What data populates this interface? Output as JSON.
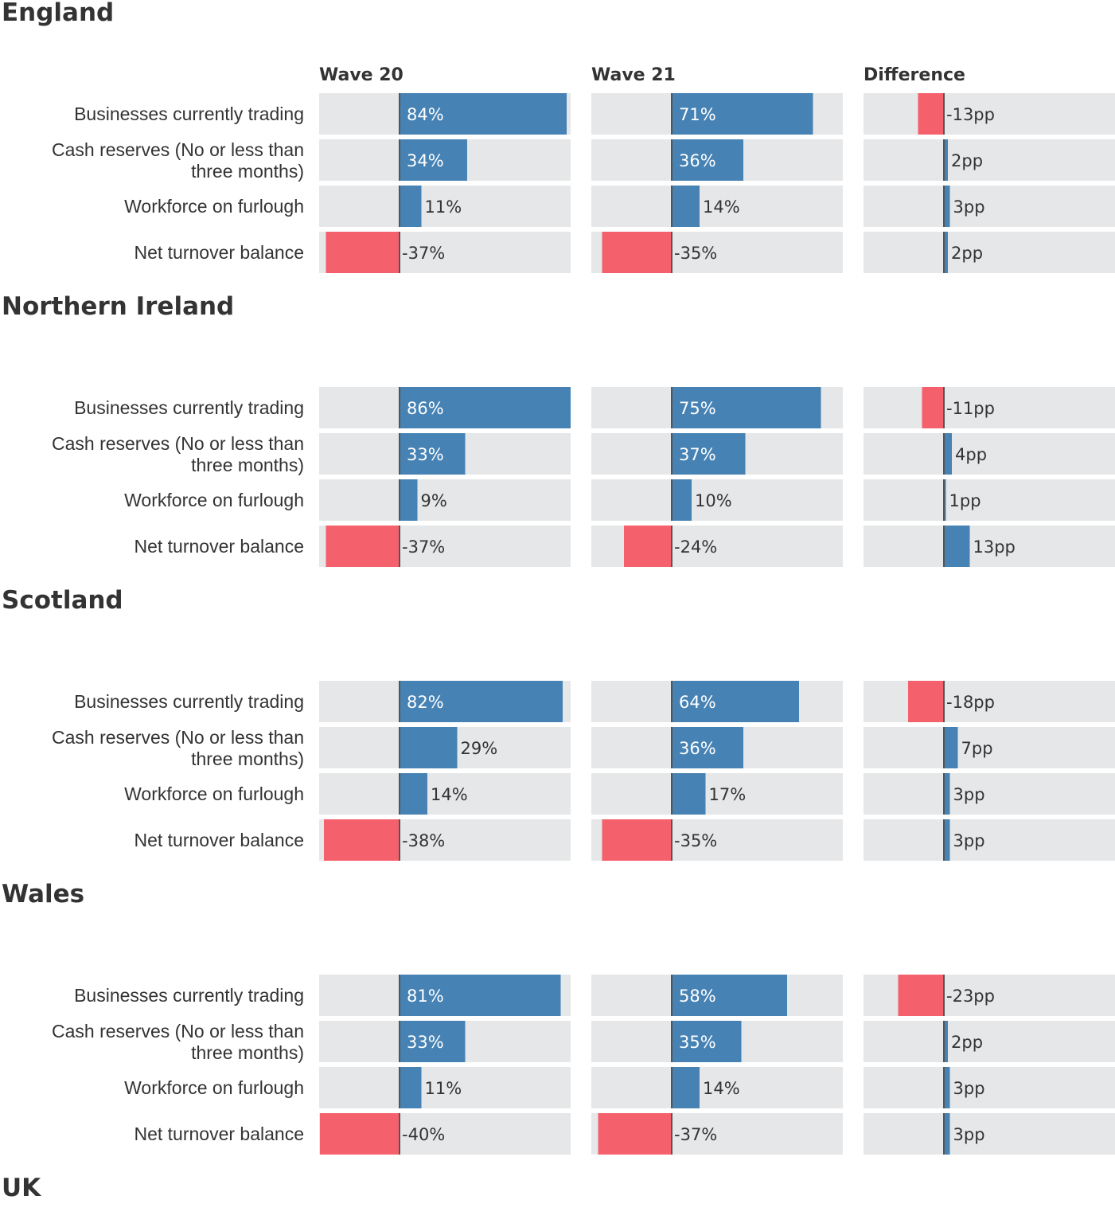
{
  "chart_data": {
    "type": "bar",
    "orientation": "horizontal",
    "columns": [
      "Wave 20",
      "Wave 21",
      "Difference"
    ],
    "categories": [
      "Businesses currently trading",
      "Cash reserves (No or less than three months)",
      "Workforce on furlough",
      "Net turnover balance"
    ],
    "category_lines": [
      [
        "Businesses currently trading"
      ],
      [
        "Cash reserves (No or less than",
        "three months)"
      ],
      [
        "Workforce on furlough"
      ],
      [
        "Net turnover balance"
      ]
    ],
    "wave_suffix": "%",
    "diff_suffix": "pp",
    "panels": [
      {
        "region": "England",
        "wave20": [
          84,
          34,
          11,
          -37
        ],
        "wave21": [
          71,
          36,
          14,
          -35
        ],
        "difference": [
          -13,
          2,
          3,
          2
        ]
      },
      {
        "region": "Northern Ireland",
        "wave20": [
          86,
          33,
          9,
          -37
        ],
        "wave21": [
          75,
          37,
          10,
          -24
        ],
        "difference": [
          -11,
          4,
          1,
          13
        ]
      },
      {
        "region": "Scotland",
        "wave20": [
          82,
          29,
          14,
          -38
        ],
        "wave21": [
          64,
          36,
          17,
          -35
        ],
        "difference": [
          -18,
          7,
          3,
          3
        ]
      },
      {
        "region": "Wales",
        "wave20": [
          81,
          33,
          11,
          -40
        ],
        "wave21": [
          58,
          35,
          14,
          -37
        ],
        "difference": [
          -23,
          2,
          3,
          3
        ]
      },
      {
        "region": "UK"
      }
    ],
    "wave_range": [
      -40,
      86
    ],
    "diff_range": [
      -40,
      86
    ],
    "colors": {
      "positive": "#4682b4",
      "negative": "#f4606c",
      "track": "#e6e7e8",
      "axis": "#555555",
      "text": "#333333"
    }
  }
}
